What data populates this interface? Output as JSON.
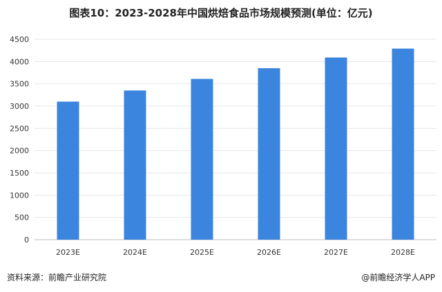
{
  "chart_title": "图表10：2023-2028年中国烘焙食品市场规模预测(单位：亿元)",
  "source_label": "资料来源：前瞻产业研究院",
  "brand_label": "@前瞻经济学人APP",
  "chart_data": {
    "type": "bar",
    "title": "图表10：2023-2028年中国烘焙食品市场规模预测(单位：亿元)",
    "categories": [
      "2023E",
      "2024E",
      "2025E",
      "2026E",
      "2027E",
      "2028E"
    ],
    "values": [
      3100,
      3350,
      3610,
      3850,
      4090,
      4290
    ],
    "ylim": [
      0,
      4500
    ],
    "yticks": [
      0,
      500,
      1000,
      1500,
      2000,
      2500,
      3000,
      3500,
      4000,
      4500
    ],
    "xlabel": "",
    "ylabel": "",
    "grid": true,
    "bar_color": "#3c85de"
  }
}
